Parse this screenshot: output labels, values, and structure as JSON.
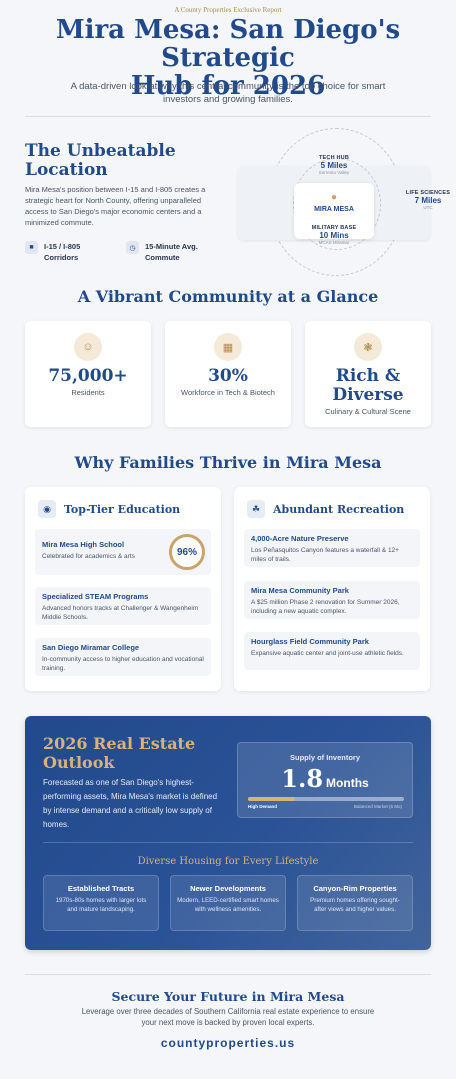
{
  "header": {
    "tag": "A County Properties Exclusive Report",
    "title_line1": "Mira Mesa: San Diego's Strategic",
    "title_line2": "Hub for 2026",
    "subtitle": "A data-driven look at why this central community is the top choice for smart investors and growing families."
  },
  "location": {
    "title": "The Unbeatable Location",
    "body": "Mira Mesa's position between I-15 and I-805 creates a strategic heart for North County, offering unparalleled access to San Diego's major economic centers and a minimized commute.",
    "features": [
      {
        "icon": "road-icon",
        "label": "I-15 / I-805 Corridors"
      },
      {
        "icon": "clock-icon",
        "label": "15-Minute Avg. Commute"
      }
    ],
    "map": {
      "center": "MIRA MESA",
      "tech": {
        "label": "TECH HUB",
        "value": "5 Miles",
        "sub": "Sorrento Valley"
      },
      "life": {
        "label": "LIFE SCIENCES",
        "value": "7 Miles",
        "sub": "UTC"
      },
      "military": {
        "label": "MILITARY BASE",
        "value": "10 Mins",
        "sub": "MCAS Miramar"
      }
    }
  },
  "community": {
    "title": "A Vibrant Community at a Glance",
    "stats": [
      {
        "icon": "people-icon",
        "value": "75,000+",
        "label": "Residents"
      },
      {
        "icon": "chip-icon",
        "value": "30%",
        "label": "Workforce in Tech & Biotech"
      },
      {
        "icon": "dining-icon",
        "value_line1": "Rich &",
        "value_line2": "Diverse",
        "label": "Culinary & Cultural Scene"
      }
    ]
  },
  "families": {
    "title": "Why Families Thrive in Mira Mesa",
    "education": {
      "heading": "Top-Tier Education",
      "items": [
        {
          "title": "Mira Mesa High School",
          "desc": "Celebrated for academics & arts",
          "score": "96%"
        },
        {
          "title": "Specialized STEAM Programs",
          "desc": "Advanced honors tracks at Challenger & Wangenheim Middle Schools."
        },
        {
          "title": "San Diego Miramar College",
          "desc": "In-community access to higher education and vocational training."
        }
      ]
    },
    "recreation": {
      "heading": "Abundant Recreation",
      "items": [
        {
          "title": "4,000-Acre Nature Preserve",
          "desc": "Los Peñasquitos Canyon features a waterfall & 12+ miles of trails."
        },
        {
          "title": "Mira Mesa Community Park",
          "desc": "A $25 million Phase 2 renovation for Summer 2026, including a new aquatic complex."
        },
        {
          "title": "Hourglass Field Community Park",
          "desc": "Expansive aquatic center and joint-use athletic fields."
        }
      ]
    }
  },
  "outlook": {
    "title": "2026 Real Estate Outlook",
    "body": "Forecasted as one of San Diego's highest-performing assets, Mira Mesa's market is defined by intense demand and a critically low supply of homes.",
    "inventory": {
      "label": "Supply of Inventory",
      "value": "1.8",
      "unit": "Months",
      "fill": 0.3,
      "left_label": "High Demand",
      "right_label": "Balanced Market (6 Mo)"
    },
    "housing_title": "Diverse Housing for Every Lifestyle",
    "housing": [
      {
        "title": "Established Tracts",
        "desc": "1970s-80s homes with larger lots and mature landscaping."
      },
      {
        "title": "Newer Developments",
        "desc": "Modern, LEED-certified smart homes with wellness amenities."
      },
      {
        "title": "Canyon-Rim Properties",
        "desc": "Premium homes offering sought-after views and higher values."
      }
    ]
  },
  "cta": {
    "title": "Secure Your Future in Mira Mesa",
    "body": "Leverage over three decades of Southern California real estate experience to ensure your next move is backed by proven local experts.",
    "url": "countyproperties.us"
  },
  "colors": {
    "primary": "#214a8c",
    "accent": "#c9a46a",
    "background": "#f4f6fa"
  }
}
